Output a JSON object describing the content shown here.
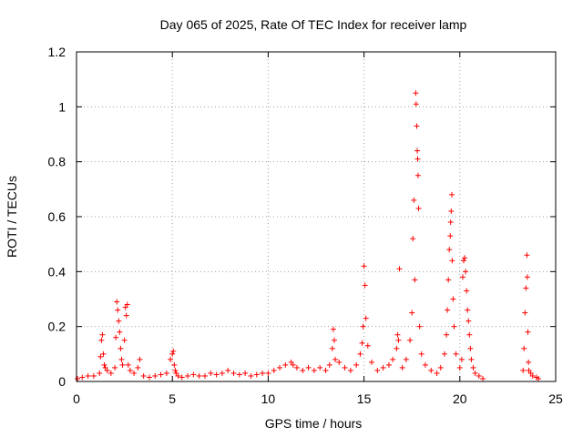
{
  "chart_data": {
    "type": "scatter",
    "title": "Day 065 of 2025, Rate Of TEC Index for receiver lamp",
    "xlabel": "GPS time / hours",
    "ylabel": "ROTI / TECUs",
    "xlim": [
      0,
      25
    ],
    "ylim": [
      0,
      1.2
    ],
    "xticks": [
      0,
      5,
      10,
      15,
      20,
      25
    ],
    "xtick_labels": [
      "0",
      "5",
      "10",
      "15",
      "20",
      "25"
    ],
    "yticks": [
      0,
      0.2,
      0.4,
      0.6,
      0.8,
      1,
      1.2
    ],
    "ytick_labels": [
      "0",
      "0.2",
      "0.4",
      "0.6",
      "0.8",
      "1",
      "1.2"
    ],
    "grid": true,
    "marker": "+",
    "color": "#ff0000",
    "series": [
      {
        "name": "ROTI",
        "x": [
          0.05,
          0.3,
          0.6,
          0.9,
          1.2,
          1.25,
          1.3,
          1.35,
          1.4,
          1.45,
          1.5,
          1.6,
          1.8,
          2.0,
          2.05,
          2.1,
          2.15,
          2.2,
          2.25,
          2.3,
          2.35,
          2.4,
          2.5,
          2.55,
          2.6,
          2.65,
          2.7,
          2.8,
          3.0,
          3.2,
          3.3,
          3.5,
          3.8,
          4.1,
          4.4,
          4.7,
          4.9,
          5.0,
          5.05,
          5.1,
          5.15,
          5.2,
          5.3,
          5.5,
          5.8,
          6.1,
          6.4,
          6.7,
          7.0,
          7.3,
          7.6,
          7.9,
          8.2,
          8.5,
          8.8,
          9.1,
          9.4,
          9.7,
          10.0,
          10.3,
          10.6,
          10.9,
          11.2,
          11.3,
          11.5,
          11.8,
          12.1,
          12.4,
          12.7,
          13.0,
          13.2,
          13.35,
          13.4,
          13.45,
          13.5,
          13.7,
          14.0,
          14.3,
          14.6,
          14.8,
          14.9,
          14.95,
          15.0,
          15.05,
          15.1,
          15.2,
          15.4,
          15.7,
          16.0,
          16.3,
          16.5,
          16.7,
          16.75,
          16.8,
          16.85,
          17.0,
          17.2,
          17.4,
          17.5,
          17.55,
          17.6,
          17.65,
          17.7,
          17.72,
          17.75,
          17.78,
          17.8,
          17.82,
          17.85,
          17.9,
          18.0,
          18.2,
          18.5,
          18.8,
          19.0,
          19.2,
          19.3,
          19.35,
          19.4,
          19.45,
          19.5,
          19.52,
          19.55,
          19.58,
          19.6,
          19.65,
          19.7,
          19.8,
          20.0,
          20.1,
          20.15,
          20.2,
          20.25,
          20.3,
          20.35,
          20.4,
          20.45,
          20.5,
          20.55,
          20.6,
          20.7,
          20.8,
          21.0,
          21.2,
          23.3,
          23.35,
          23.4,
          23.45,
          23.5,
          23.52,
          23.55,
          23.58,
          23.6,
          23.7,
          23.8,
          24.0,
          24.1
        ],
        "values": [
          0.01,
          0.015,
          0.02,
          0.02,
          0.03,
          0.09,
          0.15,
          0.17,
          0.1,
          0.06,
          0.05,
          0.04,
          0.03,
          0.05,
          0.16,
          0.29,
          0.26,
          0.22,
          0.18,
          0.12,
          0.08,
          0.06,
          0.15,
          0.27,
          0.24,
          0.28,
          0.06,
          0.04,
          0.03,
          0.05,
          0.08,
          0.02,
          0.015,
          0.02,
          0.025,
          0.03,
          0.08,
          0.1,
          0.11,
          0.06,
          0.04,
          0.03,
          0.02,
          0.015,
          0.02,
          0.025,
          0.02,
          0.02,
          0.03,
          0.025,
          0.03,
          0.04,
          0.03,
          0.025,
          0.03,
          0.02,
          0.025,
          0.03,
          0.03,
          0.04,
          0.05,
          0.06,
          0.07,
          0.06,
          0.05,
          0.04,
          0.05,
          0.04,
          0.05,
          0.04,
          0.06,
          0.12,
          0.19,
          0.15,
          0.08,
          0.07,
          0.05,
          0.04,
          0.06,
          0.1,
          0.14,
          0.2,
          0.42,
          0.35,
          0.23,
          0.13,
          0.07,
          0.04,
          0.05,
          0.06,
          0.08,
          0.12,
          0.17,
          0.15,
          0.41,
          0.05,
          0.08,
          0.15,
          0.25,
          0.52,
          0.66,
          0.37,
          1.05,
          1.01,
          0.93,
          0.84,
          0.81,
          0.75,
          0.63,
          0.2,
          0.1,
          0.06,
          0.04,
          0.03,
          0.05,
          0.1,
          0.17,
          0.26,
          0.37,
          0.48,
          0.53,
          0.58,
          0.62,
          0.68,
          0.44,
          0.3,
          0.2,
          0.1,
          0.05,
          0.08,
          0.38,
          0.44,
          0.45,
          0.4,
          0.33,
          0.26,
          0.22,
          0.17,
          0.12,
          0.08,
          0.05,
          0.03,
          0.02,
          0.01,
          0.04,
          0.12,
          0.25,
          0.34,
          0.46,
          0.38,
          0.18,
          0.07,
          0.04,
          0.03,
          0.02,
          0.015,
          0.01
        ]
      }
    ]
  }
}
